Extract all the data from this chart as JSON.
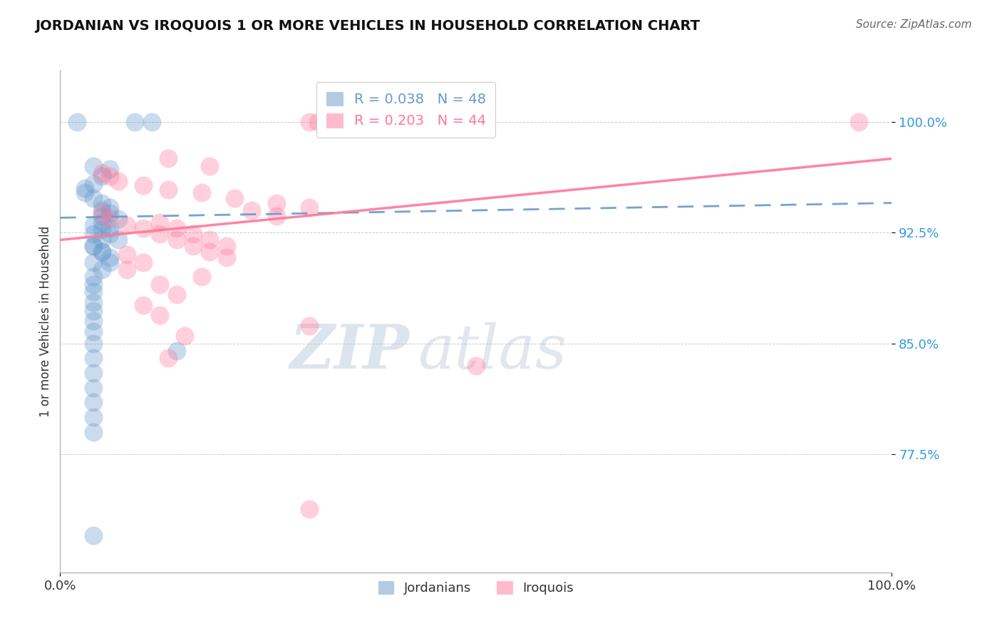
{
  "title": "JORDANIAN VS IROQUOIS 1 OR MORE VEHICLES IN HOUSEHOLD CORRELATION CHART",
  "source": "Source: ZipAtlas.com",
  "ylabel": "1 or more Vehicles in Household",
  "xlim": [
    0.0,
    1.0
  ],
  "ylim": [
    0.695,
    1.035
  ],
  "yticks": [
    0.775,
    0.85,
    0.925,
    1.0
  ],
  "ytick_labels": [
    "77.5%",
    "85.0%",
    "92.5%",
    "100.0%"
  ],
  "xticks": [
    0.0,
    1.0
  ],
  "xtick_labels": [
    "0.0%",
    "100.0%"
  ],
  "legend_blue_r": "R = 0.038",
  "legend_blue_n": "N = 48",
  "legend_pink_r": "R = 0.203",
  "legend_pink_n": "N = 44",
  "blue_color": "#6699CC",
  "pink_color": "#FF7799",
  "watermark_zip": "ZIP",
  "watermark_atlas": "atlas",
  "jordanians_x": [
    0.02,
    0.09,
    0.11,
    0.04,
    0.06,
    0.05,
    0.04,
    0.03,
    0.03,
    0.04,
    0.05,
    0.06,
    0.06,
    0.07,
    0.04,
    0.05,
    0.04,
    0.05,
    0.04,
    0.05,
    0.06,
    0.06,
    0.05,
    0.05,
    0.05,
    0.06,
    0.06,
    0.07,
    0.04,
    0.05,
    0.04,
    0.05,
    0.04,
    0.04,
    0.04,
    0.04,
    0.04,
    0.04,
    0.04,
    0.04,
    0.04,
    0.04,
    0.04,
    0.04,
    0.04,
    0.04,
    0.14,
    0.04
  ],
  "jordanians_y": [
    1.0,
    1.0,
    1.0,
    0.97,
    0.968,
    0.963,
    0.958,
    0.955,
    0.952,
    0.948,
    0.945,
    0.942,
    0.938,
    0.934,
    0.93,
    0.927,
    0.924,
    0.92,
    0.916,
    0.912,
    0.908,
    0.905,
    0.94,
    0.936,
    0.932,
    0.928,
    0.924,
    0.92,
    0.916,
    0.912,
    0.905,
    0.9,
    0.895,
    0.89,
    0.885,
    0.878,
    0.872,
    0.865,
    0.858,
    0.85,
    0.84,
    0.83,
    0.82,
    0.81,
    0.8,
    0.79,
    0.845,
    0.72
  ],
  "iroquois_x": [
    0.3,
    0.31,
    0.41,
    0.13,
    0.18,
    0.05,
    0.06,
    0.07,
    0.1,
    0.13,
    0.17,
    0.21,
    0.26,
    0.3,
    0.05,
    0.06,
    0.08,
    0.1,
    0.12,
    0.14,
    0.16,
    0.18,
    0.2,
    0.23,
    0.26,
    0.12,
    0.14,
    0.16,
    0.18,
    0.2,
    0.08,
    0.1,
    0.08,
    0.17,
    0.12,
    0.14,
    0.1,
    0.12,
    0.3,
    0.15,
    0.13,
    0.5,
    0.96,
    0.3
  ],
  "iroquois_y": [
    1.0,
    1.0,
    1.0,
    0.975,
    0.97,
    0.965,
    0.963,
    0.96,
    0.957,
    0.954,
    0.952,
    0.948,
    0.945,
    0.942,
    0.938,
    0.934,
    0.93,
    0.928,
    0.924,
    0.92,
    0.916,
    0.912,
    0.908,
    0.94,
    0.936,
    0.932,
    0.928,
    0.924,
    0.92,
    0.916,
    0.91,
    0.905,
    0.9,
    0.895,
    0.89,
    0.883,
    0.876,
    0.869,
    0.862,
    0.855,
    0.84,
    0.835,
    1.0,
    0.738
  ],
  "blue_trendline_x": [
    0.0,
    1.0
  ],
  "blue_trendline_y": [
    0.935,
    0.945
  ],
  "pink_trendline_x": [
    0.0,
    1.0
  ],
  "pink_trendline_y": [
    0.92,
    0.975
  ]
}
